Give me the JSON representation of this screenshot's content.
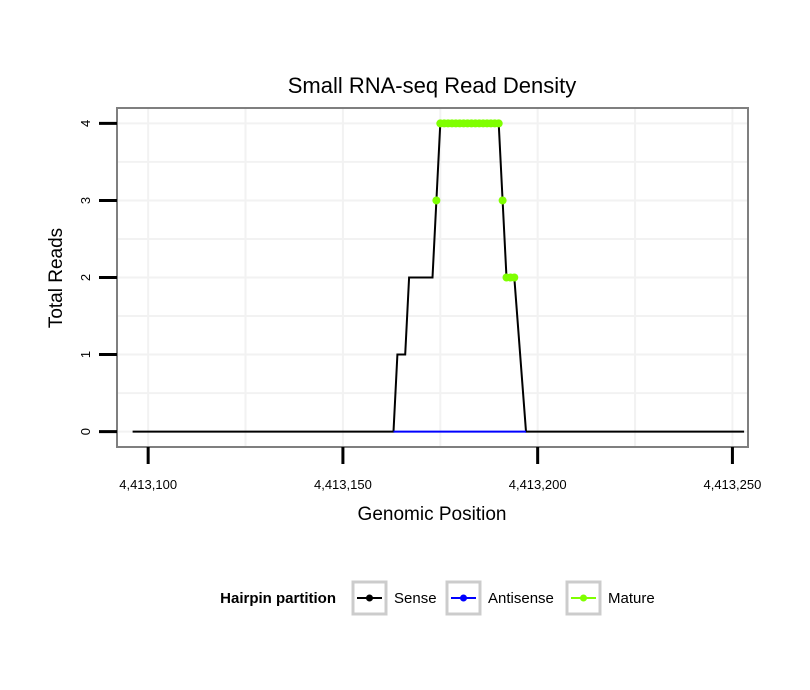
{
  "chart_data": {
    "type": "line",
    "title": "Small RNA-seq Read Density",
    "xlabel": "Genomic Position",
    "ylabel": "Total Reads",
    "xlim": [
      4413092,
      4413254
    ],
    "ylim": [
      -0.2,
      4.2
    ],
    "x_ticks": [
      4413100,
      4413150,
      4413200,
      4413250
    ],
    "x_tick_labels": [
      "4,413,100",
      "4,413,150",
      "4,413,200",
      "4,413,250"
    ],
    "y_ticks": [
      0,
      1,
      2,
      3,
      4
    ],
    "y_tick_labels": [
      "0",
      "1",
      "2",
      "3",
      "4"
    ],
    "grid": true,
    "legend": {
      "title": "Hairpin partition",
      "position": "bottom",
      "entries": [
        "Sense",
        "Antisense",
        "Mature"
      ]
    },
    "series": [
      {
        "name": "Sense",
        "color": "#000000",
        "points": [
          [
            4413096,
            0
          ],
          [
            4413163,
            0
          ],
          [
            4413164,
            1
          ],
          [
            4413166,
            1
          ],
          [
            4413167,
            2
          ],
          [
            4413170,
            2
          ],
          [
            4413171,
            2
          ],
          [
            4413172,
            2
          ],
          [
            4413173,
            2
          ],
          [
            4413174,
            3
          ],
          [
            4413175,
            4
          ],
          [
            4413190,
            4
          ],
          [
            4413191,
            3
          ],
          [
            4413192,
            2
          ],
          [
            4413194,
            2
          ],
          [
            4413197,
            0
          ],
          [
            4413253,
            0
          ]
        ]
      },
      {
        "name": "Antisense",
        "color": "#0000ff",
        "points": [
          [
            4413163,
            0
          ],
          [
            4413197,
            0
          ]
        ]
      },
      {
        "name": "Mature",
        "color": "#7fff00",
        "points": [
          [
            4413174,
            3
          ],
          [
            4413175,
            4
          ],
          [
            4413176,
            4
          ],
          [
            4413177,
            4
          ],
          [
            4413178,
            4
          ],
          [
            4413179,
            4
          ],
          [
            4413180,
            4
          ],
          [
            4413181,
            4
          ],
          [
            4413182,
            4
          ],
          [
            4413183,
            4
          ],
          [
            4413184,
            4
          ],
          [
            4413185,
            4
          ],
          [
            4413186,
            4
          ],
          [
            4413187,
            4
          ],
          [
            4413188,
            4
          ],
          [
            4413189,
            4
          ],
          [
            4413190,
            4
          ],
          [
            4413191,
            3
          ],
          [
            4413192,
            2
          ],
          [
            4413193,
            2
          ],
          [
            4413194,
            2
          ]
        ]
      }
    ]
  }
}
